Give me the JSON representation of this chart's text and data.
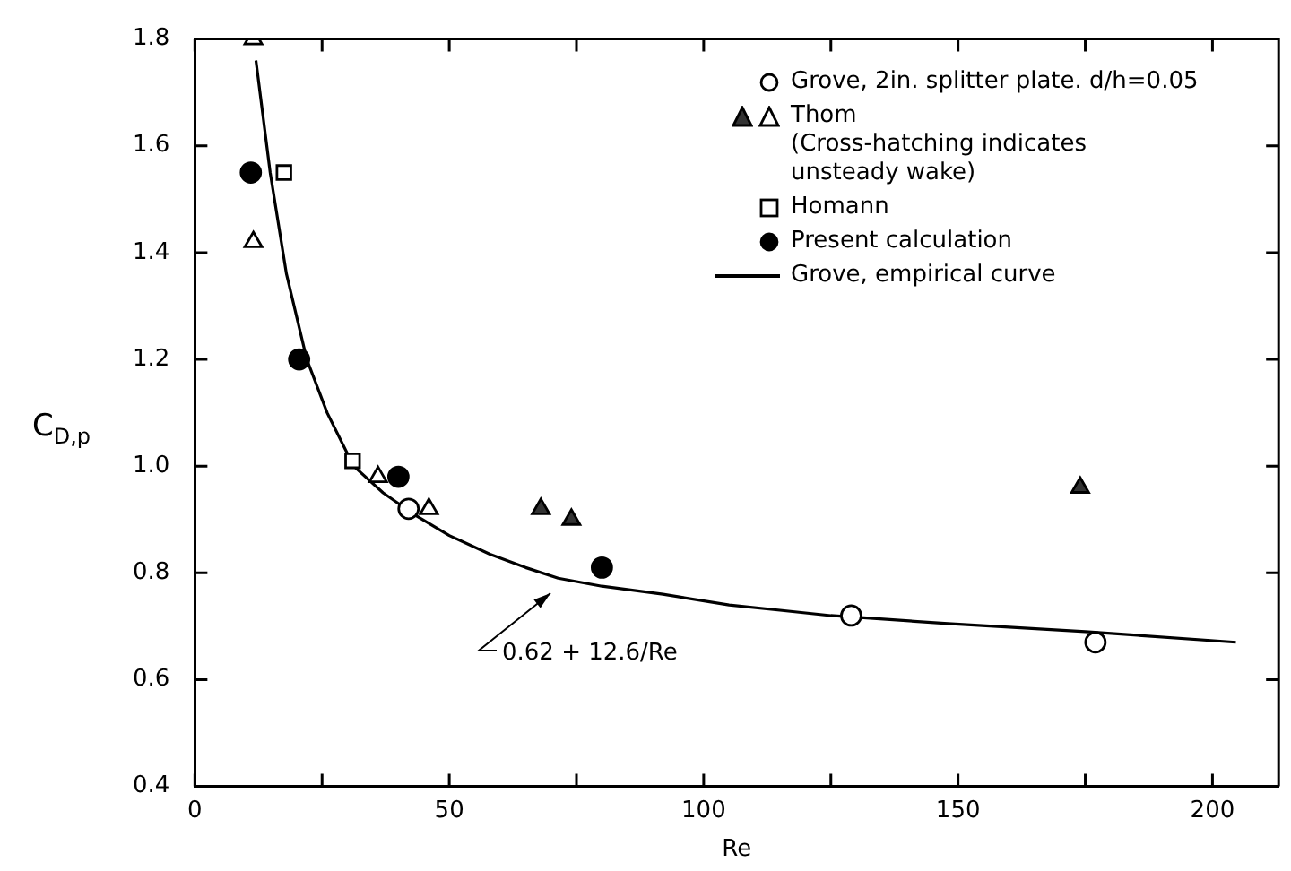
{
  "chart_data": {
    "type": "scatter",
    "xlabel": "Re",
    "ylabel": "C$_{D,p}$",
    "xlim": [
      0,
      213
    ],
    "ylim": [
      0.4,
      1.8
    ],
    "xticks": [
      0,
      {
        "value": 25,
        "label": null
      },
      50,
      {
        "value": 75,
        "label": null
      },
      100,
      {
        "value": 125,
        "label": null
      },
      150,
      {
        "value": 175,
        "label": null
      },
      200
    ],
    "yticks": [
      0.4,
      0.6,
      0.8,
      {
        "value": 1,
        "label": "1.0"
      },
      1.2,
      1.4,
      1.6,
      1.8
    ],
    "grid": false,
    "legend": "top right",
    "series": [
      {
        "name": "Grove, 2in. splitter plate. d/h=0.05",
        "marker": "circle",
        "color": "#ffffff",
        "x": [
          42,
          129,
          177
        ],
        "values": [
          0.92,
          0.72,
          0.67
        ]
      },
      {
        "marker": "triangle",
        "color": "#333333",
        "x": [
          68,
          74,
          174
        ],
        "values": [
          0.92,
          0.9,
          0.96
        ]
      },
      {
        "name": "Thom\n(Cross-hatching indicates\n unsteady wake)",
        "marker": "triangle",
        "color": "#ffffff",
        "x": [
          11.5,
          11.5,
          36,
          46
        ],
        "values": [
          1.8,
          1.42,
          0.98,
          0.92
        ]
      },
      {
        "name": "Homann",
        "marker": "square",
        "color": "#ffffff",
        "x": [
          17.5,
          31
        ],
        "values": [
          1.55,
          1.01
        ]
      },
      {
        "name": "Present calculation",
        "marker": "circle",
        "color": "#000000",
        "x": [
          11,
          20.5,
          40,
          80
        ],
        "values": [
          1.55,
          1.2,
          0.98,
          0.81
        ]
      },
      {
        "name": "Grove, empirical curve",
        "type": "line",
        "marker": "none",
        "line_style": "solid",
        "color": "#000000",
        "x": [
          12,
          14.8,
          18,
          22,
          26,
          31.2,
          37,
          43,
          50,
          58,
          65,
          71.4,
          80,
          92,
          105,
          115,
          125,
          148,
          175,
          204.6
        ],
        "values": [
          1.76,
          1.55,
          1.36,
          1.2,
          1.1,
          1.0,
          0.95,
          0.91,
          0.87,
          0.835,
          0.81,
          0.79,
          0.775,
          0.76,
          0.74,
          0.73,
          0.72,
          0.705,
          0.69,
          0.67
        ]
      }
    ],
    "annotations": [
      {
        "text": "0.62 + 12.6/Re",
        "x": 72,
        "y": 0.79
      }
    ]
  }
}
